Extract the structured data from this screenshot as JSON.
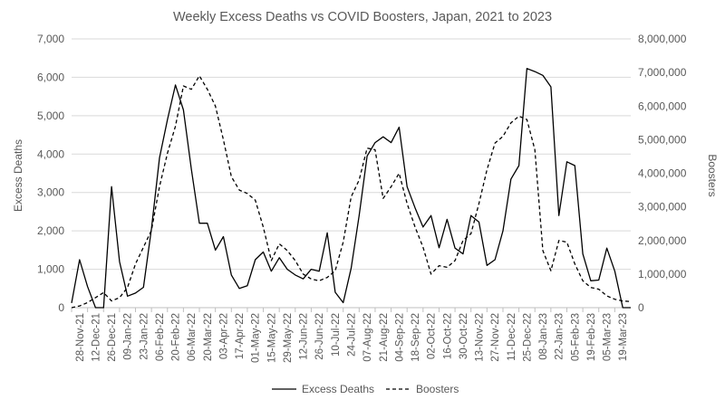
{
  "chart_data": {
    "type": "line",
    "title": "Weekly Excess Deaths vs COVID Boosters, Japan, 2021 to 2023",
    "ylabel": "Excess Deaths",
    "y2label": "Boosters",
    "xlabel": "",
    "ylim": [
      0,
      7000
    ],
    "y2lim": [
      0,
      8000000
    ],
    "yticks": [
      0,
      1000,
      2000,
      3000,
      4000,
      5000,
      6000,
      7000
    ],
    "y2ticks": [
      0,
      1000000,
      2000000,
      3000000,
      4000000,
      5000000,
      6000000,
      7000000,
      8000000
    ],
    "ytick_labels": [
      "0",
      "1,000",
      "2,000",
      "3,000",
      "4,000",
      "5,000",
      "6,000",
      "7,000"
    ],
    "y2tick_labels": [
      "0",
      "1,000,000",
      "2,000,000",
      "3,000,000",
      "4,000,000",
      "5,000,000",
      "6,000,000",
      "7,000,000",
      "8,000,000"
    ],
    "xtick_labels": [
      "28-Nov-21",
      "12-Dec-21",
      "26-Dec-21",
      "09-Jan-22",
      "23-Jan-22",
      "06-Feb-22",
      "20-Feb-22",
      "06-Mar-22",
      "20-Mar-22",
      "03-Apr-22",
      "17-Apr-22",
      "01-May-22",
      "15-May-22",
      "29-May-22",
      "12-Jun-22",
      "26-Jun-22",
      "10-Jul-22",
      "24-Jul-22",
      "07-Aug-22",
      "21-Aug-22",
      "04-Sep-22",
      "18-Sep-22",
      "02-Oct-22",
      "16-Oct-22",
      "30-Oct-22",
      "13-Nov-22",
      "27-Nov-22",
      "11-Dec-22",
      "25-Dec-22",
      "08-Jan-23",
      "22-Jan-23",
      "05-Feb-23",
      "19-Feb-23",
      "05-Mar-23",
      "19-Mar-23"
    ],
    "grid": true,
    "legend_position": "bottom",
    "series": [
      {
        "name": "Excess Deaths",
        "style": "solid",
        "axis": "left",
        "color": "#000000",
        "values": [
          120,
          1250,
          550,
          0,
          0,
          3150,
          1200,
          300,
          380,
          530,
          2050,
          3900,
          4900,
          5800,
          5150,
          3600,
          2200,
          2200,
          1500,
          1850,
          850,
          500,
          570,
          1250,
          1450,
          950,
          1300,
          1000,
          850,
          750,
          1000,
          950,
          1950,
          400,
          130,
          1030,
          2400,
          3950,
          4300,
          4450,
          4300,
          4700,
          3150,
          2600,
          2100,
          2400,
          1560,
          2300,
          1550,
          1400,
          2400,
          2230,
          1100,
          1250,
          2000,
          3350,
          3700,
          6230,
          6150,
          6050,
          5750,
          2400,
          3800,
          3700,
          1400,
          700,
          720,
          1550,
          950,
          0,
          0
        ]
      },
      {
        "name": "Boosters",
        "style": "dashed",
        "axis": "right",
        "color": "#000000",
        "values": [
          0,
          50000,
          150000,
          300000,
          450000,
          200000,
          300000,
          600000,
          1300000,
          1800000,
          2300000,
          3600000,
          4600000,
          5400000,
          6600000,
          6500000,
          6900000,
          6500000,
          6000000,
          5000000,
          3900000,
          3500000,
          3400000,
          3200000,
          2400000,
          1400000,
          1900000,
          1700000,
          1400000,
          1000000,
          850000,
          800000,
          900000,
          1100000,
          1950000,
          3300000,
          3800000,
          4750000,
          4700000,
          3250000,
          3600000,
          4000000,
          3100000,
          2400000,
          1800000,
          1000000,
          1250000,
          1200000,
          1400000,
          2000000,
          2200000,
          3100000,
          4100000,
          4900000,
          5100000,
          5500000,
          5700000,
          5600000,
          4700000,
          1700000,
          1100000,
          2000000,
          1950000,
          1300000,
          800000,
          600000,
          550000,
          350000,
          250000,
          200000,
          180000
        ]
      }
    ]
  }
}
